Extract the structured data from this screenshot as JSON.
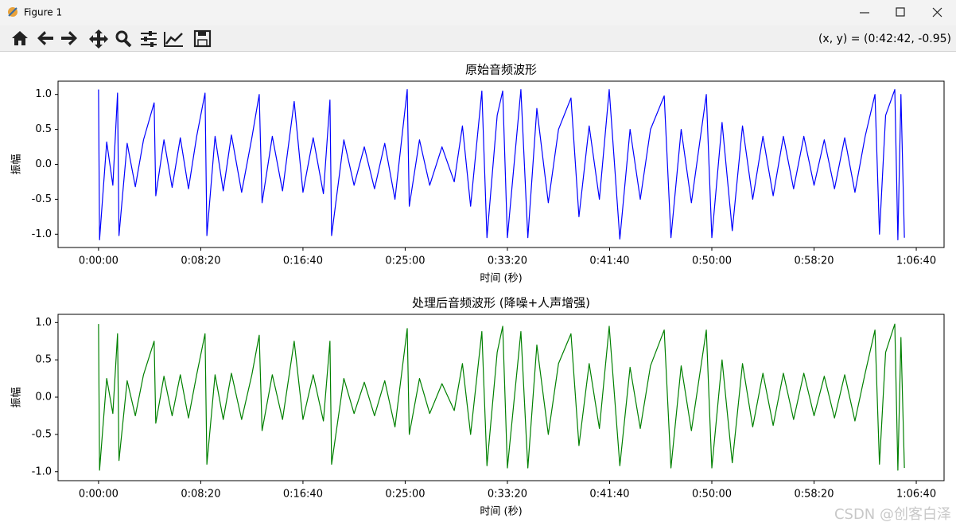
{
  "window": {
    "title": "Figure 1",
    "status": "(x, y) = (0:42:42, -0.95)"
  },
  "watermark": "CSDN @创客白泽",
  "chart_data": [
    {
      "type": "line",
      "title": "原始音频波形",
      "xlabel": "时间 (秒)",
      "ylabel": "振幅",
      "color": "#0000ff",
      "x": [
        0,
        5,
        40,
        70,
        93,
        100,
        140,
        180,
        220,
        272,
        280,
        320,
        360,
        400,
        440,
        480,
        521,
        530,
        570,
        610,
        650,
        700,
        750,
        786,
        800,
        850,
        900,
        957,
        1000,
        1050,
        1100,
        1132,
        1140,
        1200,
        1250,
        1300,
        1350,
        1400,
        1450,
        1510,
        1520,
        1570,
        1620,
        1680,
        1740,
        1780,
        1820,
        1875,
        1900,
        1950,
        1977,
        2000,
        2066,
        2100,
        2144,
        2200,
        2250,
        2311,
        2350,
        2400,
        2450,
        2498,
        2550,
        2600,
        2650,
        2700,
        2767,
        2800,
        2850,
        2900,
        2973,
        3000,
        3050,
        3100,
        3150,
        3200,
        3250,
        3300,
        3350,
        3400,
        3450,
        3500,
        3550,
        3600,
        3650,
        3700,
        3750,
        3798,
        3820,
        3850,
        3895,
        3910,
        3925,
        3942
      ],
      "values": [
        1.07,
        -1.08,
        0.32,
        -0.3,
        1.02,
        -1.02,
        0.3,
        -0.32,
        0.35,
        0.88,
        -0.45,
        0.35,
        -0.33,
        0.38,
        -0.35,
        0.4,
        1.02,
        -1.02,
        0.4,
        -0.38,
        0.42,
        -0.4,
        0.38,
        1.0,
        -0.55,
        0.4,
        -0.38,
        0.9,
        -0.4,
        0.38,
        -0.42,
        0.92,
        -1.02,
        0.35,
        -0.3,
        0.25,
        -0.35,
        0.3,
        -0.5,
        1.07,
        -0.6,
        0.35,
        -0.3,
        0.25,
        -0.25,
        0.55,
        -0.6,
        1.05,
        -1.05,
        0.7,
        1.05,
        -1.05,
        1.07,
        -1.05,
        0.8,
        -0.55,
        0.5,
        0.95,
        -0.75,
        0.55,
        -0.5,
        1.07,
        -1.07,
        0.5,
        -0.5,
        0.5,
        0.98,
        -1.05,
        0.5,
        -0.55,
        1.0,
        -1.05,
        0.6,
        -0.95,
        0.55,
        -0.5,
        0.4,
        -0.45,
        0.4,
        -0.35,
        0.4,
        -0.3,
        0.35,
        -0.35,
        0.38,
        -0.4,
        0.4,
        1.0,
        -1.0,
        0.7,
        1.07,
        -1.08,
        1.0,
        -1.05
      ],
      "xlim": [
        -198,
        4136
      ],
      "ylim": [
        -1.19,
        1.19
      ],
      "xticks": [
        {
          "value": 0,
          "label": "0:00:00"
        },
        {
          "value": 500,
          "label": "0:08:20"
        },
        {
          "value": 1000,
          "label": "0:16:40"
        },
        {
          "value": 1500,
          "label": "0:25:00"
        },
        {
          "value": 2000,
          "label": "0:33:20"
        },
        {
          "value": 2500,
          "label": "0:41:40"
        },
        {
          "value": 3000,
          "label": "0:50:00"
        },
        {
          "value": 3500,
          "label": "0:58:20"
        },
        {
          "value": 4000,
          "label": "1:06:40"
        }
      ],
      "yticks": [
        {
          "value": -1,
          "label": "-1.0"
        },
        -0.5,
        {
          "value": 0,
          "label": "0.0"
        },
        0.5,
        {
          "value": 1,
          "label": "1.0"
        }
      ]
    },
    {
      "type": "line",
      "title": "处理后音频波形 (降噪+人声增强)",
      "xlabel": "时间 (秒)",
      "ylabel": "振幅",
      "color": "#008000",
      "x": [
        0,
        5,
        40,
        70,
        93,
        100,
        140,
        180,
        220,
        272,
        280,
        320,
        360,
        400,
        440,
        480,
        521,
        530,
        570,
        610,
        650,
        700,
        750,
        786,
        800,
        850,
        900,
        957,
        1000,
        1050,
        1100,
        1132,
        1140,
        1200,
        1250,
        1300,
        1350,
        1400,
        1450,
        1510,
        1520,
        1570,
        1620,
        1680,
        1740,
        1780,
        1820,
        1875,
        1900,
        1950,
        1977,
        2000,
        2066,
        2100,
        2144,
        2200,
        2250,
        2311,
        2350,
        2400,
        2450,
        2498,
        2550,
        2600,
        2650,
        2700,
        2767,
        2800,
        2850,
        2900,
        2973,
        3000,
        3050,
        3100,
        3150,
        3200,
        3250,
        3300,
        3350,
        3400,
        3450,
        3500,
        3550,
        3600,
        3650,
        3700,
        3750,
        3798,
        3820,
        3850,
        3895,
        3910,
        3925,
        3942
      ],
      "values": [
        0.98,
        -0.98,
        0.25,
        -0.22,
        0.85,
        -0.85,
        0.22,
        -0.25,
        0.3,
        0.75,
        -0.35,
        0.28,
        -0.25,
        0.3,
        -0.28,
        0.3,
        0.85,
        -0.9,
        0.3,
        -0.3,
        0.32,
        -0.3,
        0.3,
        0.83,
        -0.45,
        0.3,
        -0.3,
        0.75,
        -0.3,
        0.3,
        -0.32,
        0.75,
        -0.9,
        0.25,
        -0.22,
        0.2,
        -0.25,
        0.22,
        -0.4,
        0.92,
        -0.5,
        0.25,
        -0.22,
        0.18,
        -0.18,
        0.45,
        -0.5,
        0.88,
        -0.92,
        0.6,
        0.95,
        -0.95,
        0.88,
        -0.95,
        0.7,
        -0.5,
        0.45,
        0.85,
        -0.65,
        0.45,
        -0.42,
        0.95,
        -0.92,
        0.4,
        -0.42,
        0.42,
        0.9,
        -0.95,
        0.42,
        -0.45,
        0.9,
        -0.95,
        0.5,
        -0.88,
        0.45,
        -0.4,
        0.32,
        -0.38,
        0.32,
        -0.3,
        0.32,
        -0.25,
        0.28,
        -0.28,
        0.3,
        -0.32,
        0.32,
        0.9,
        -0.9,
        0.6,
        0.98,
        -0.98,
        0.8,
        -0.95
      ],
      "xlim": [
        -198,
        4136
      ],
      "ylim": [
        -1.12,
        1.11
      ],
      "xticks": [
        {
          "value": 0,
          "label": "0:00:00"
        },
        {
          "value": 500,
          "label": "0:08:20"
        },
        {
          "value": 1000,
          "label": "0:16:40"
        },
        {
          "value": 1500,
          "label": "0:25:00"
        },
        {
          "value": 2000,
          "label": "0:33:20"
        },
        {
          "value": 2500,
          "label": "0:41:40"
        },
        {
          "value": 3000,
          "label": "0:50:00"
        },
        {
          "value": 3500,
          "label": "0:58:20"
        },
        {
          "value": 4000,
          "label": "1:06:40"
        }
      ],
      "yticks": [
        {
          "value": -1,
          "label": "-1.0"
        },
        -0.5,
        {
          "value": 0,
          "label": "0.0"
        },
        0.5,
        {
          "value": 1,
          "label": "1.0"
        }
      ]
    }
  ]
}
